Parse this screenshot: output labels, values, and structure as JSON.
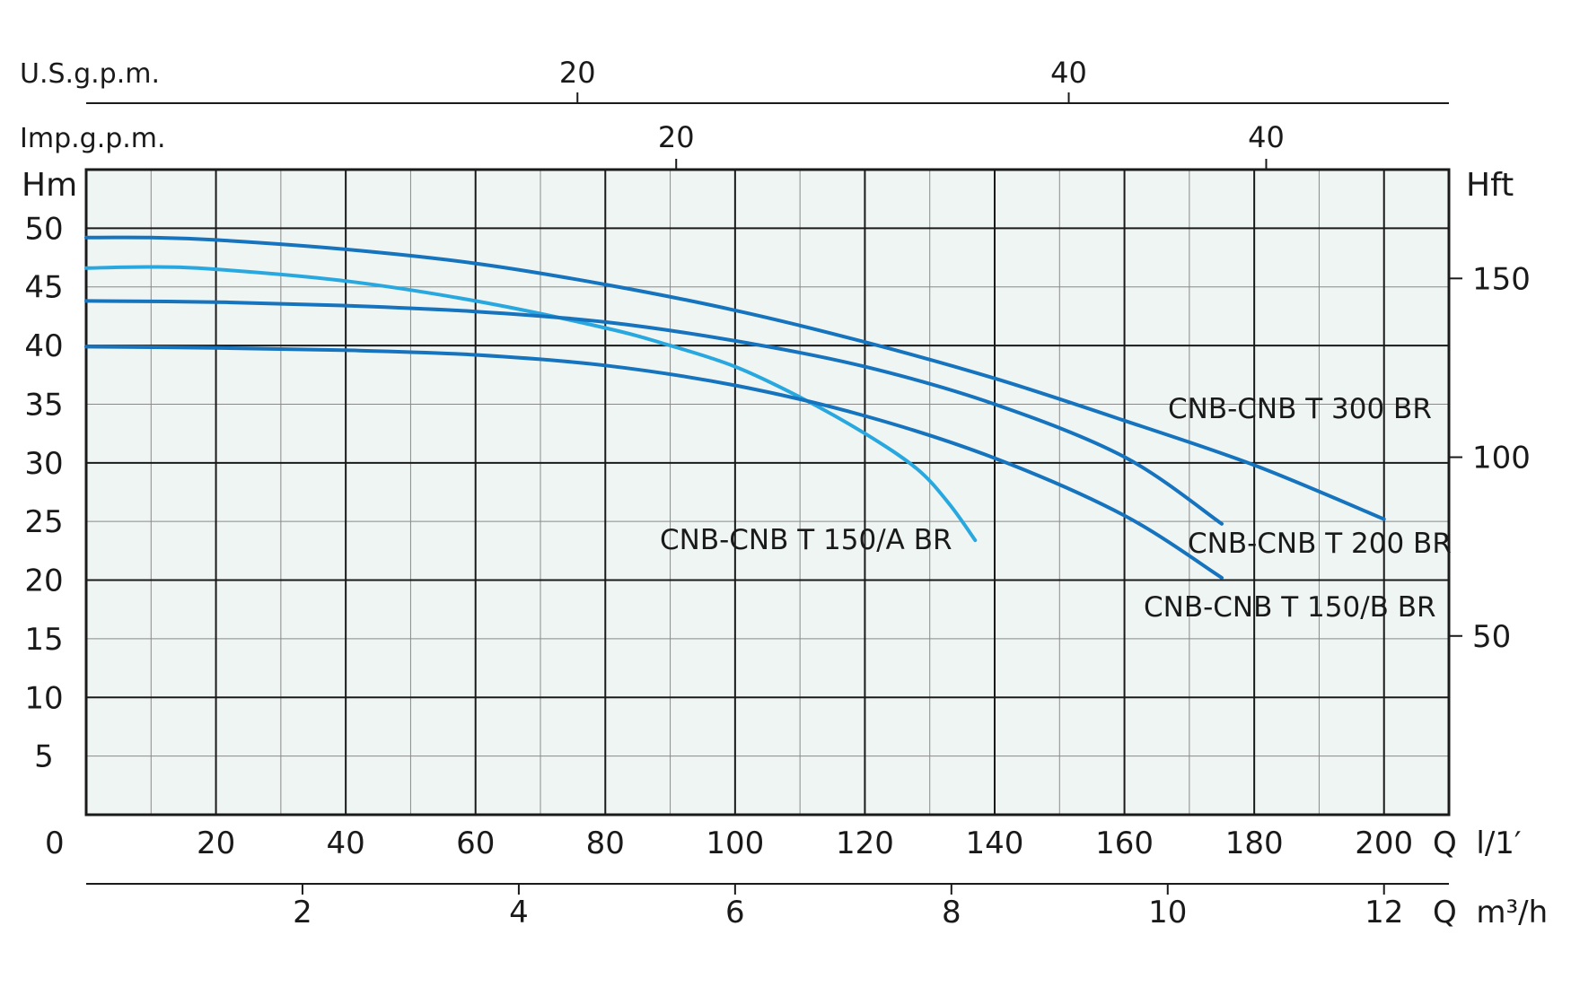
{
  "chart_data": {
    "type": "line",
    "title": "",
    "left_axis": {
      "unit_label": "Hm",
      "ticks": [
        "50",
        "45",
        "40",
        "35",
        "30",
        "25",
        "20",
        "15",
        "10",
        "5"
      ],
      "ylim": [
        0,
        55
      ]
    },
    "right_axis": {
      "unit_label": "Hft",
      "ticks": [
        "150",
        "100",
        "50"
      ]
    },
    "bottom_axis_lpm": {
      "unit_label": "Q  l/1′",
      "zero_label": "0",
      "ticks": [
        "20",
        "40",
        "60",
        "80",
        "100",
        "120",
        "140",
        "160",
        "180",
        "200"
      ],
      "xlim": [
        0,
        210
      ]
    },
    "bottom_axis_m3h": {
      "unit_label": "Q  m³/h",
      "ticks": [
        "2",
        "4",
        "6",
        "8",
        "10",
        "12"
      ]
    },
    "top_axis_usgpm": {
      "unit_label": "U.S.g.p.m.",
      "ticks": [
        "20",
        "40"
      ]
    },
    "top_axis_impgpm": {
      "unit_label": "Imp.g.p.m.",
      "ticks": [
        "20",
        "40"
      ]
    },
    "grid": true,
    "series": [
      {
        "name": "CNB-CNB T 300 BR",
        "color": "#1673be",
        "x": [
          0,
          10,
          20,
          40,
          60,
          80,
          100,
          120,
          140,
          160,
          180,
          200
        ],
        "y": [
          49.2,
          49.2,
          49.0,
          48.2,
          47.0,
          45.2,
          43.0,
          40.3,
          37.2,
          33.6,
          29.8,
          25.2
        ]
      },
      {
        "name": "CNB-CNB T 150/A BR",
        "color": "#29a8e0",
        "x": [
          0,
          10,
          20,
          40,
          60,
          80,
          90,
          100,
          110,
          120,
          128,
          133,
          137
        ],
        "y": [
          46.6,
          46.7,
          46.5,
          45.5,
          43.8,
          41.5,
          40.0,
          38.2,
          35.6,
          32.5,
          29.5,
          26.5,
          23.4
        ]
      },
      {
        "name": "CNB-CNB T 200 BR",
        "color": "#1673be",
        "x": [
          0,
          20,
          40,
          60,
          80,
          100,
          120,
          140,
          160,
          175
        ],
        "y": [
          43.8,
          43.7,
          43.4,
          42.9,
          42.0,
          40.4,
          38.2,
          35.0,
          30.5,
          24.8
        ]
      },
      {
        "name": "CNB-CNB T 150/B BR",
        "color": "#1673be",
        "x": [
          0,
          20,
          40,
          60,
          80,
          100,
          120,
          140,
          160,
          175
        ],
        "y": [
          39.9,
          39.8,
          39.6,
          39.2,
          38.3,
          36.6,
          34.0,
          30.4,
          25.5,
          20.2
        ]
      }
    ]
  }
}
